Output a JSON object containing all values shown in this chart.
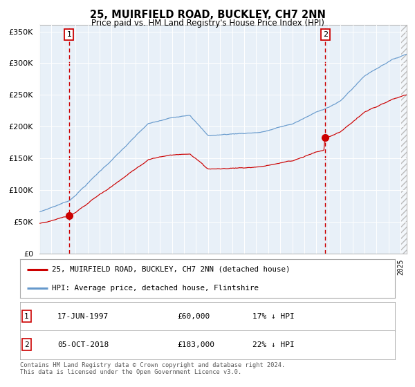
{
  "title": "25, MUIRFIELD ROAD, BUCKLEY, CH7 2NN",
  "subtitle": "Price paid vs. HM Land Registry's House Price Index (HPI)",
  "legend_line1": "25, MUIRFIELD ROAD, BUCKLEY, CH7 2NN (detached house)",
  "legend_line2": "HPI: Average price, detached house, Flintshire",
  "xmin": 1995.0,
  "xmax": 2025.5,
  "ymin": 0,
  "ymax": 360000,
  "red_line_color": "#cc0000",
  "blue_line_color": "#6699cc",
  "plot_bg": "#e8f0f8",
  "vline_color": "#cc0000",
  "marker1_x": 1997.46,
  "marker1_y": 60000,
  "marker2_x": 2018.75,
  "marker2_y": 183000,
  "yticks": [
    0,
    50000,
    100000,
    150000,
    200000,
    250000,
    300000,
    350000
  ],
  "footer": "Contains HM Land Registry data © Crown copyright and database right 2024.\nThis data is licensed under the Open Government Licence v3.0.",
  "annotation1_text": "17-JUN-1997",
  "annotation1_price": "£60,000",
  "annotation1_hpi": "17% ↓ HPI",
  "annotation2_text": "05-OCT-2018",
  "annotation2_price": "£183,000",
  "annotation2_hpi": "22% ↓ HPI"
}
